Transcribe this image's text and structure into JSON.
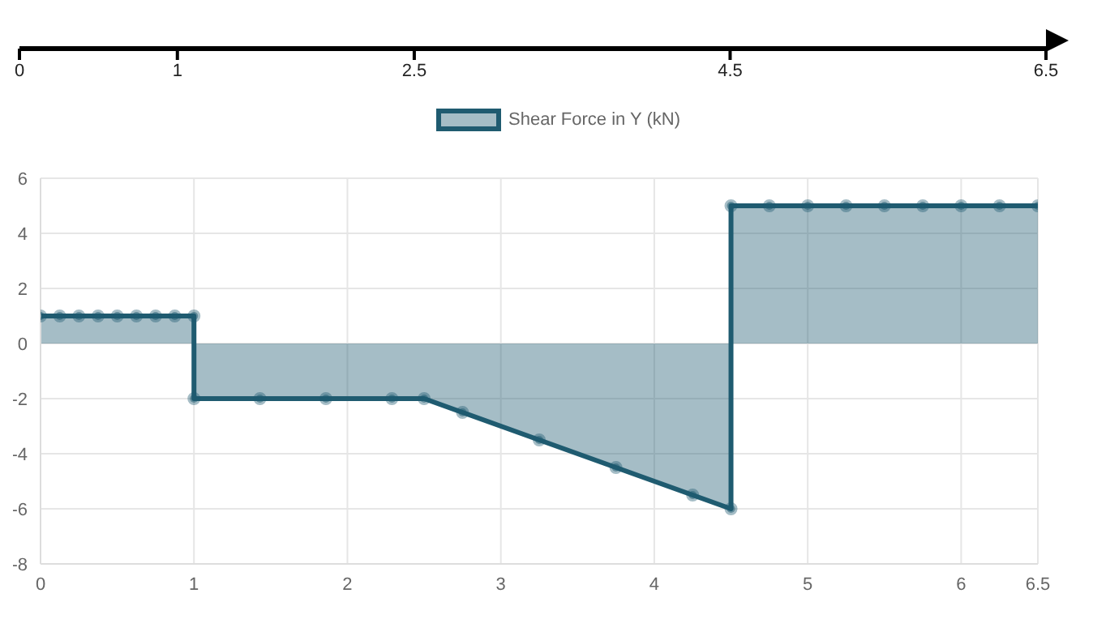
{
  "chart_data": {
    "type": "area",
    "x2lim": [
      0,
      6.5
    ],
    "x2ticks": [
      0,
      1,
      2.5,
      4.5,
      6.5
    ],
    "xlim": [
      0,
      6.5
    ],
    "xticks": [
      0,
      1,
      2,
      3,
      4,
      5,
      6,
      6.5
    ],
    "ylim": [
      -8,
      6
    ],
    "yticks": [
      -8,
      -6,
      -4,
      -2,
      0,
      2,
      4,
      6
    ],
    "grid": true,
    "legend": "top",
    "marker": "circle",
    "series": [
      {
        "name": "Shear Force in Y (kN)",
        "color": "#1f5b70",
        "x": [
          0,
          0.125,
          0.25,
          0.375,
          0.5,
          0.625,
          0.75,
          0.875,
          1,
          1,
          1.43,
          1.86,
          2.29,
          2.5,
          2.75,
          3.25,
          3.75,
          4.25,
          4.5,
          4.5,
          4.75,
          5,
          5.25,
          5.5,
          5.75,
          6,
          6.25,
          6.5
        ],
        "values": [
          1,
          1,
          1,
          1,
          1,
          1,
          1,
          1,
          1,
          -2,
          -2,
          -2,
          -2,
          -2,
          -2.5,
          -3.5,
          -4.5,
          -5.5,
          -6,
          5,
          5,
          5,
          5,
          5,
          5,
          5,
          5,
          5
        ]
      }
    ]
  }
}
